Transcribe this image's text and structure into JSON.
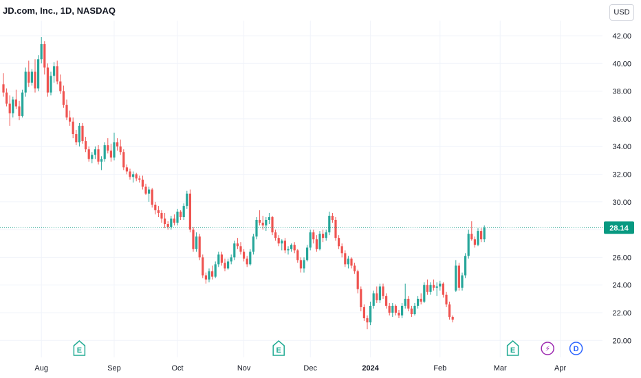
{
  "chart_data": {
    "type": "candlestick",
    "title": "JD.com, Inc., 1D, NASDAQ",
    "currency": "USD",
    "last_price_label": "28.14",
    "last_price": 28.14,
    "y_ticks": [
      "20.00",
      "22.00",
      "24.00",
      "26.00",
      "28.00",
      "30.00",
      "32.00",
      "34.00",
      "36.00",
      "38.00",
      "40.00",
      "42.00"
    ],
    "y_tick_values": [
      20,
      22,
      24,
      26,
      28,
      30,
      32,
      34,
      36,
      38,
      40,
      42
    ],
    "ylim": [
      19.3,
      42.6
    ],
    "x_labels": [
      {
        "label": "Aug",
        "index": 12
      },
      {
        "label": "Sep",
        "index": 35
      },
      {
        "label": "Oct",
        "index": 55
      },
      {
        "label": "Nov",
        "index": 76
      },
      {
        "label": "Dec",
        "index": 97
      },
      {
        "label": "2024",
        "index": 116
      },
      {
        "label": "Feb",
        "index": 138
      },
      {
        "label": "Mar",
        "index": 157
      },
      {
        "label": "Apr",
        "index": 176
      }
    ],
    "events": [
      {
        "type": "earnings",
        "label": "E",
        "index": 24,
        "icon": "earnings-icon"
      },
      {
        "type": "earnings",
        "label": "E",
        "index": 87,
        "icon": "earnings-icon"
      },
      {
        "type": "earnings",
        "label": "E",
        "index": 161,
        "icon": "earnings-icon"
      },
      {
        "type": "split",
        "label": "⚡",
        "index": 172,
        "icon": "lightning-icon"
      },
      {
        "type": "dividend",
        "label": "D",
        "index": 181,
        "icon": "dividend-icon"
      }
    ],
    "colors": {
      "up": "#26a69a",
      "down": "#ef5350",
      "last_price": "#089981",
      "grid": "#f0f3fa",
      "event_green": "#22ab94",
      "event_purple": "#9c27b0",
      "event_blue": "#2962ff"
    },
    "candles": [
      [
        38.5,
        39.3,
        37.6,
        37.9
      ],
      [
        37.9,
        38.2,
        36.9,
        37.1
      ],
      [
        37.1,
        37.7,
        35.5,
        36.4
      ],
      [
        36.4,
        37.6,
        36.1,
        37.4
      ],
      [
        37.4,
        38.1,
        36.7,
        36.9
      ],
      [
        36.9,
        37.3,
        35.9,
        36.2
      ],
      [
        36.2,
        38.1,
        36.1,
        37.9
      ],
      [
        37.9,
        39.7,
        37.6,
        39.4
      ],
      [
        39.4,
        40.2,
        38.3,
        38.6
      ],
      [
        38.6,
        39.6,
        38.4,
        39.4
      ],
      [
        39.4,
        40.3,
        37.9,
        38.2
      ],
      [
        38.2,
        40.6,
        38.0,
        40.3
      ],
      [
        40.3,
        41.9,
        40.0,
        41.4
      ],
      [
        41.4,
        41.6,
        39.2,
        39.7
      ],
      [
        39.7,
        40.0,
        37.6,
        37.9
      ],
      [
        37.9,
        39.4,
        37.7,
        39.1
      ],
      [
        39.1,
        40.1,
        38.6,
        39.8
      ],
      [
        39.8,
        40.2,
        38.5,
        38.7
      ],
      [
        38.7,
        39.2,
        37.8,
        38.0
      ],
      [
        38.0,
        38.4,
        36.8,
        37.0
      ],
      [
        37.0,
        37.4,
        35.9,
        36.1
      ],
      [
        36.1,
        36.6,
        35.5,
        35.8
      ],
      [
        35.8,
        36.1,
        34.6,
        34.9
      ],
      [
        34.9,
        35.2,
        34.1,
        34.3
      ],
      [
        34.3,
        35.7,
        34.0,
        35.5
      ],
      [
        35.5,
        35.7,
        34.2,
        34.4
      ],
      [
        34.4,
        34.7,
        33.6,
        33.8
      ],
      [
        33.8,
        34.0,
        32.9,
        33.1
      ],
      [
        33.1,
        33.6,
        32.8,
        33.4
      ],
      [
        33.4,
        34.0,
        33.1,
        33.8
      ],
      [
        33.8,
        34.1,
        32.7,
        32.9
      ],
      [
        32.9,
        33.3,
        32.3,
        33.1
      ],
      [
        33.1,
        34.3,
        32.9,
        34.1
      ],
      [
        34.1,
        34.6,
        33.5,
        33.7
      ],
      [
        33.7,
        34.2,
        32.9,
        33.2
      ],
      [
        33.2,
        35.0,
        33.0,
        34.3
      ],
      [
        34.3,
        34.6,
        33.7,
        34.0
      ],
      [
        34.0,
        34.5,
        33.4,
        33.6
      ],
      [
        33.6,
        33.8,
        32.3,
        32.5
      ],
      [
        32.5,
        32.7,
        32.0,
        32.2
      ],
      [
        32.2,
        32.4,
        31.6,
        31.8
      ],
      [
        31.8,
        32.2,
        31.4,
        32.0
      ],
      [
        32.0,
        32.1,
        31.5,
        31.7
      ],
      [
        31.7,
        31.9,
        31.4,
        31.6
      ],
      [
        31.6,
        31.9,
        30.9,
        31.1
      ],
      [
        31.1,
        31.3,
        30.5,
        30.6
      ],
      [
        30.6,
        31.1,
        30.0,
        30.9
      ],
      [
        30.9,
        31.0,
        29.6,
        29.8
      ],
      [
        29.8,
        30.0,
        29.1,
        29.4
      ],
      [
        29.4,
        29.7,
        28.9,
        29.2
      ],
      [
        29.2,
        29.4,
        28.5,
        28.8
      ],
      [
        28.8,
        29.2,
        28.1,
        28.4
      ],
      [
        28.4,
        28.6,
        28.0,
        28.2
      ],
      [
        28.2,
        29.0,
        28.0,
        28.8
      ],
      [
        28.8,
        29.1,
        28.3,
        28.5
      ],
      [
        28.5,
        29.5,
        28.3,
        29.3
      ],
      [
        29.3,
        29.4,
        28.7,
        28.9
      ],
      [
        28.9,
        29.9,
        28.7,
        29.7
      ],
      [
        29.7,
        30.8,
        29.5,
        30.6
      ],
      [
        30.6,
        30.9,
        27.8,
        28.0
      ],
      [
        28.0,
        28.2,
        26.4,
        26.6
      ],
      [
        26.6,
        27.8,
        26.4,
        27.5
      ],
      [
        27.5,
        27.7,
        25.8,
        26.0
      ],
      [
        26.0,
        26.2,
        24.5,
        24.7
      ],
      [
        24.7,
        24.9,
        24.1,
        24.4
      ],
      [
        24.4,
        25.2,
        24.2,
        25.0
      ],
      [
        25.0,
        25.4,
        24.4,
        24.6
      ],
      [
        24.6,
        25.7,
        24.5,
        25.5
      ],
      [
        25.5,
        26.4,
        25.3,
        26.2
      ],
      [
        26.2,
        26.4,
        25.4,
        25.6
      ],
      [
        25.6,
        25.9,
        25.0,
        25.2
      ],
      [
        25.2,
        25.9,
        25.1,
        25.7
      ],
      [
        25.7,
        26.2,
        25.5,
        26.0
      ],
      [
        26.0,
        27.2,
        25.8,
        27.0
      ],
      [
        27.0,
        27.4,
        26.6,
        26.8
      ],
      [
        26.8,
        27.1,
        26.2,
        26.4
      ],
      [
        26.4,
        26.6,
        25.7,
        25.9
      ],
      [
        25.9,
        26.1,
        25.3,
        25.5
      ],
      [
        25.5,
        26.6,
        25.4,
        26.4
      ],
      [
        26.4,
        27.7,
        26.2,
        27.5
      ],
      [
        27.5,
        28.9,
        27.3,
        28.7
      ],
      [
        28.7,
        29.4,
        28.3,
        28.5
      ],
      [
        28.5,
        29.0,
        28.0,
        28.3
      ],
      [
        28.3,
        28.9,
        27.9,
        28.7
      ],
      [
        28.7,
        29.2,
        28.4,
        28.9
      ],
      [
        28.9,
        29.0,
        27.6,
        27.8
      ],
      [
        27.8,
        28.0,
        27.2,
        27.4
      ],
      [
        27.4,
        27.6,
        26.8,
        27.0
      ],
      [
        27.0,
        27.3,
        26.5,
        27.2
      ],
      [
        27.2,
        27.4,
        26.3,
        26.5
      ],
      [
        26.5,
        26.8,
        26.2,
        26.6
      ],
      [
        26.6,
        27.0,
        26.4,
        26.9
      ],
      [
        26.9,
        27.1,
        26.3,
        26.5
      ],
      [
        26.5,
        26.6,
        25.6,
        25.8
      ],
      [
        25.8,
        26.0,
        24.9,
        25.2
      ],
      [
        25.2,
        26.0,
        24.9,
        25.8
      ],
      [
        25.8,
        26.9,
        25.7,
        26.7
      ],
      [
        26.7,
        28.0,
        26.5,
        27.8
      ],
      [
        27.8,
        28.0,
        27.0,
        27.3
      ],
      [
        27.3,
        27.6,
        26.4,
        26.6
      ],
      [
        26.6,
        27.9,
        26.5,
        27.7
      ],
      [
        27.7,
        28.0,
        27.1,
        27.4
      ],
      [
        27.4,
        28.0,
        27.2,
        27.8
      ],
      [
        27.8,
        29.3,
        27.6,
        29.0
      ],
      [
        29.0,
        29.2,
        28.5,
        28.7
      ],
      [
        28.7,
        28.9,
        27.2,
        27.4
      ],
      [
        27.4,
        27.6,
        26.6,
        26.8
      ],
      [
        26.8,
        27.0,
        26.0,
        26.3
      ],
      [
        26.3,
        26.5,
        25.3,
        25.5
      ],
      [
        25.5,
        26.1,
        25.2,
        25.9
      ],
      [
        25.9,
        26.0,
        25.2,
        25.4
      ],
      [
        25.4,
        25.6,
        24.8,
        25.0
      ],
      [
        25.0,
        25.1,
        23.4,
        23.7
      ],
      [
        23.7,
        23.9,
        22.1,
        22.4
      ],
      [
        22.4,
        22.6,
        21.4,
        21.6
      ],
      [
        21.6,
        21.8,
        20.8,
        21.3
      ],
      [
        21.3,
        22.8,
        21.1,
        22.5
      ],
      [
        22.5,
        23.6,
        22.3,
        23.4
      ],
      [
        23.4,
        23.9,
        22.7,
        22.9
      ],
      [
        22.9,
        24.1,
        22.7,
        23.9
      ],
      [
        23.9,
        24.1,
        23.0,
        23.2
      ],
      [
        23.2,
        23.4,
        22.3,
        22.5
      ],
      [
        22.5,
        22.7,
        21.8,
        22.0
      ],
      [
        22.0,
        22.7,
        21.7,
        22.5
      ],
      [
        22.5,
        22.6,
        21.8,
        22.0
      ],
      [
        22.0,
        22.2,
        21.6,
        21.8
      ],
      [
        21.8,
        22.7,
        21.6,
        22.5
      ],
      [
        22.5,
        24.1,
        22.3,
        23.0
      ],
      [
        23.0,
        23.2,
        22.1,
        22.3
      ],
      [
        22.3,
        22.5,
        21.7,
        21.9
      ],
      [
        21.9,
        22.7,
        21.8,
        22.5
      ],
      [
        22.5,
        23.2,
        22.3,
        23.0
      ],
      [
        23.0,
        23.4,
        22.6,
        22.8
      ],
      [
        22.8,
        24.2,
        22.7,
        24.0
      ],
      [
        24.0,
        24.4,
        23.3,
        23.5
      ],
      [
        23.5,
        24.2,
        23.3,
        24.0
      ],
      [
        24.0,
        24.4,
        23.6,
        23.8
      ],
      [
        23.8,
        24.2,
        23.2,
        23.9
      ],
      [
        23.9,
        24.3,
        23.6,
        24.1
      ],
      [
        24.1,
        24.2,
        23.1,
        23.3
      ],
      [
        23.3,
        23.5,
        22.4,
        22.6
      ],
      [
        22.6,
        22.8,
        21.5,
        21.7
      ],
      [
        21.7,
        21.8,
        21.3,
        21.5
      ],
      [
        23.6,
        25.8,
        23.5,
        25.4
      ],
      [
        25.4,
        25.6,
        23.6,
        23.8
      ],
      [
        23.8,
        24.9,
        23.6,
        24.7
      ],
      [
        24.7,
        26.3,
        24.5,
        26.1
      ],
      [
        26.1,
        28.0,
        25.9,
        27.7
      ],
      [
        27.7,
        28.6,
        27.2,
        27.3
      ],
      [
        27.3,
        27.5,
        26.7,
        26.9
      ],
      [
        26.9,
        28.1,
        26.8,
        27.9
      ],
      [
        27.9,
        28.1,
        27.1,
        27.3
      ],
      [
        27.3,
        28.3,
        27.1,
        28.14
      ]
    ]
  }
}
